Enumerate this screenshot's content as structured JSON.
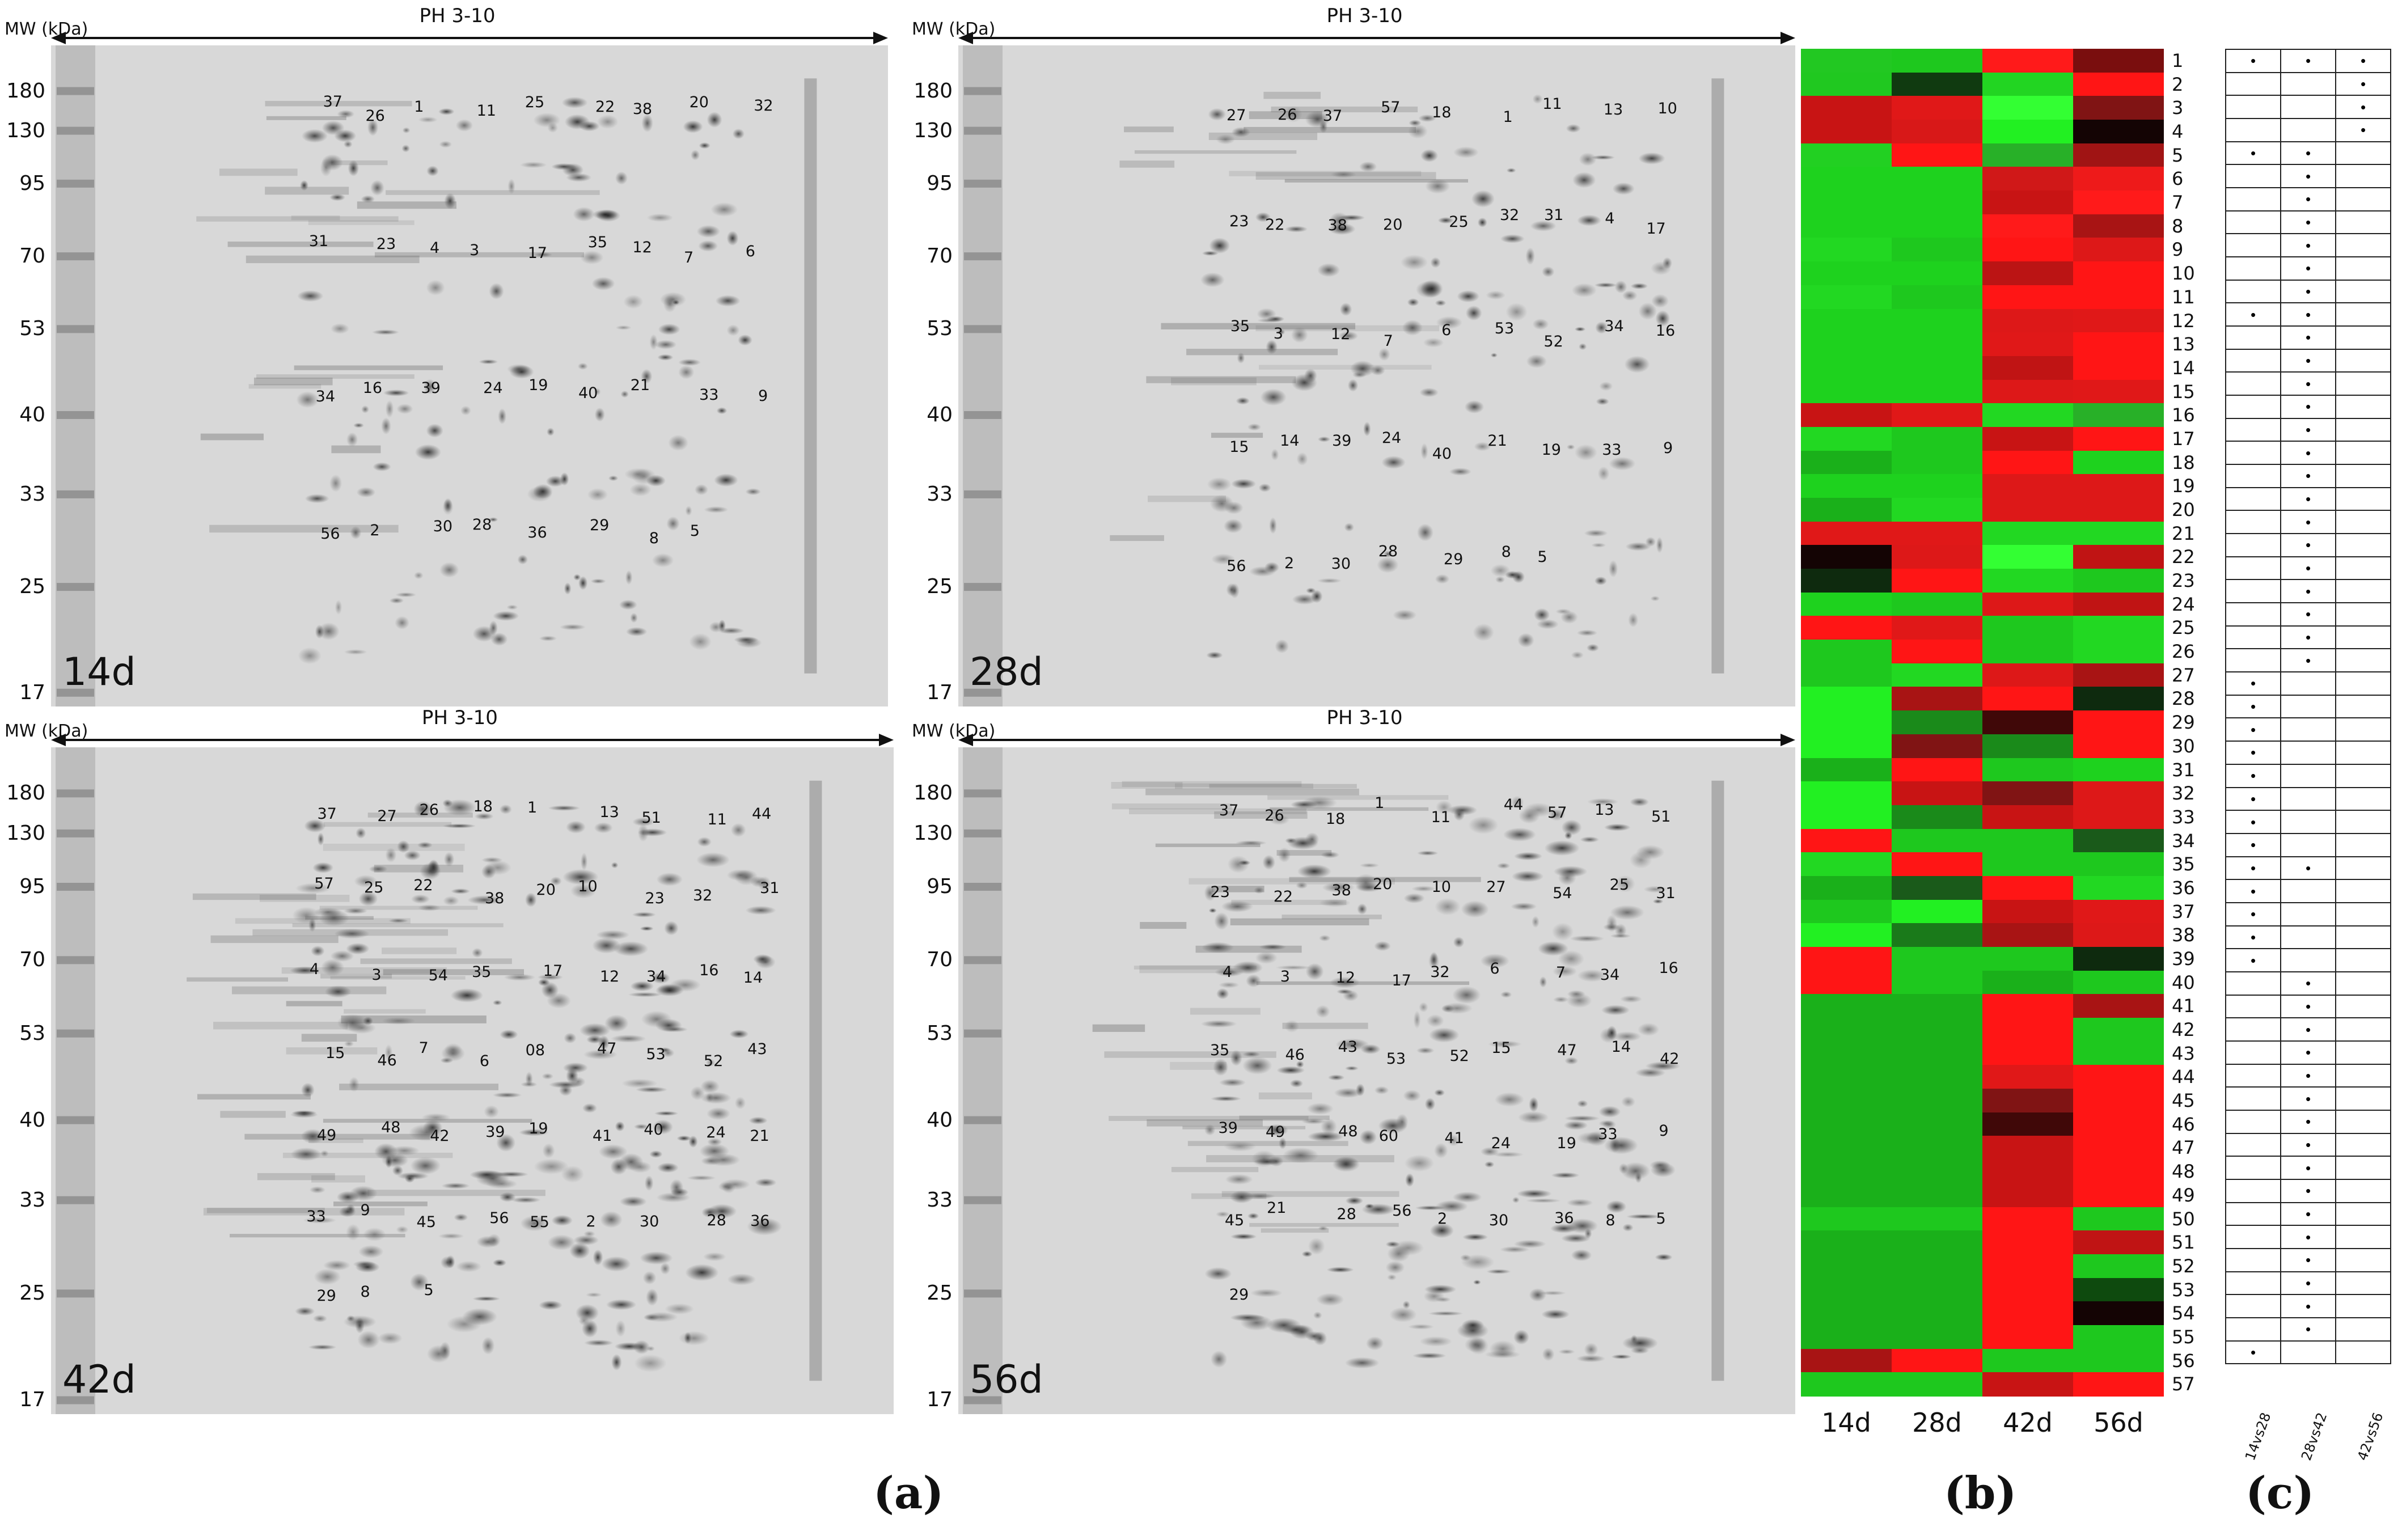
{
  "gel_common": {
    "mw_header": "MW (kDa)",
    "ph_label": "PH 3-10",
    "mw_ticks": [
      "180",
      "130",
      "95",
      "70",
      "53",
      "40",
      "33",
      "25",
      "17"
    ]
  },
  "gels": [
    {
      "id": "g14",
      "day_label": "14d",
      "spots": [
        "37",
        "26",
        "1",
        "11",
        "25",
        "22",
        "38",
        "20",
        "32",
        "31",
        "23",
        "4",
        "3",
        "17",
        "35",
        "12",
        "7",
        "6",
        "34",
        "16",
        "39",
        "24",
        "19",
        "40",
        "21",
        "33",
        "9",
        "56",
        "2",
        "30",
        "28",
        "36",
        "29",
        "8",
        "5"
      ]
    },
    {
      "id": "g28",
      "day_label": "28d",
      "spots": [
        "27",
        "26",
        "37",
        "57",
        "18",
        "1",
        "11",
        "13",
        "10",
        "23",
        "22",
        "38",
        "20",
        "25",
        "32",
        "31",
        "4",
        "17",
        "35",
        "3",
        "12",
        "7",
        "6",
        "53",
        "52",
        "34",
        "16",
        "15",
        "14",
        "39",
        "24",
        "40",
        "21",
        "19",
        "33",
        "9",
        "56",
        "2",
        "30",
        "28",
        "29",
        "8",
        "5"
      ]
    },
    {
      "id": "g42",
      "day_label": "42d",
      "spots": [
        "37",
        "27",
        "26",
        "18",
        "1",
        "13",
        "51",
        "11",
        "44",
        "57",
        "25",
        "22",
        "38",
        "20",
        "10",
        "23",
        "32",
        "31",
        "4",
        "3",
        "54",
        "35",
        "17",
        "12",
        "34",
        "16",
        "14",
        "15",
        "46",
        "7",
        "6",
        "08",
        "47",
        "53",
        "52",
        "43",
        "49",
        "48",
        "42",
        "39",
        "19",
        "41",
        "40",
        "24",
        "21",
        "33",
        "9",
        "45",
        "56",
        "55",
        "2",
        "30",
        "28",
        "36",
        "29",
        "8",
        "5"
      ]
    },
    {
      "id": "g56",
      "day_label": "56d",
      "spots": [
        "37",
        "26",
        "18",
        "1",
        "11",
        "44",
        "57",
        "13",
        "51",
        "23",
        "22",
        "38",
        "20",
        "10",
        "27",
        "54",
        "25",
        "31",
        "4",
        "3",
        "12",
        "17",
        "32",
        "6",
        "7",
        "34",
        "16",
        "35",
        "46",
        "43",
        "53",
        "52",
        "15",
        "47",
        "14",
        "42",
        "39",
        "49",
        "48",
        "60",
        "41",
        "24",
        "19",
        "33",
        "9",
        "45",
        "21",
        "28",
        "56",
        "2",
        "30",
        "36",
        "8",
        "5",
        "29"
      ]
    }
  ],
  "heatmap": {
    "columns": [
      "14d",
      "28d",
      "42d",
      "56d"
    ],
    "row_labels": [
      "1",
      "2",
      "3",
      "4",
      "5",
      "6",
      "7",
      "8",
      "9",
      "10",
      "11",
      "12",
      "13",
      "14",
      "15",
      "16",
      "17",
      "18",
      "19",
      "20",
      "21",
      "22",
      "23",
      "24",
      "25",
      "26",
      "27",
      "28",
      "29",
      "30",
      "31",
      "32",
      "33",
      "34",
      "35",
      "36",
      "37",
      "38",
      "39",
      "40",
      "41",
      "42",
      "43",
      "44",
      "45",
      "46",
      "47",
      "48",
      "49",
      "50",
      "51",
      "52",
      "53",
      "54",
      "55",
      "56",
      "57"
    ],
    "cells": [
      [
        "#22c822",
        "#1ec81e",
        "#ff1a1a",
        "#7a0e0e"
      ],
      [
        "#20c820",
        "#103a10",
        "#22d522",
        "#ff1515"
      ],
      [
        "#c81414",
        "#e01818",
        "#33ff33",
        "#801414"
      ],
      [
        "#c81414",
        "#d81818",
        "#22f022",
        "#140404"
      ],
      [
        "#22d022",
        "#ff1515",
        "#28b028",
        "#a01414"
      ],
      [
        "#1ed21e",
        "#1ed21e",
        "#d01818",
        "#ee1a1a"
      ],
      [
        "#1ed21e",
        "#1ed21e",
        "#c81414",
        "#ff1a1a"
      ],
      [
        "#1ed21e",
        "#1ed21e",
        "#ff1a1a",
        "#a81414"
      ],
      [
        "#22d822",
        "#1ec81e",
        "#ff1515",
        "#dd1818"
      ],
      [
        "#1ed21e",
        "#1ed21e",
        "#bb1414",
        "#ff1515"
      ],
      [
        "#22d822",
        "#1ec81e",
        "#ff1515",
        "#ff1515"
      ],
      [
        "#1ed21e",
        "#1ed21e",
        "#dd1818",
        "#e01818"
      ],
      [
        "#1ed21e",
        "#1ed21e",
        "#e01818",
        "#ff1515"
      ],
      [
        "#1ed21e",
        "#1ed21e",
        "#c01414",
        "#ff1515"
      ],
      [
        "#1ed21e",
        "#1ed21e",
        "#dd1818",
        "#e01818"
      ],
      [
        "#c81414",
        "#e01818",
        "#22d822",
        "#28b028"
      ],
      [
        "#22d822",
        "#1ec81e",
        "#c81414",
        "#ff1515"
      ],
      [
        "#1ab01a",
        "#1ec81e",
        "#ff1515",
        "#1ed21e"
      ],
      [
        "#1ed21e",
        "#1ed21e",
        "#dd1818",
        "#dd1818"
      ],
      [
        "#1ab01a",
        "#22d822",
        "#dd1818",
        "#dd1818"
      ],
      [
        "#e01818",
        "#e01818",
        "#22d822",
        "#22d822"
      ],
      [
        "#140404",
        "#dd1818",
        "#33ff33",
        "#c01414"
      ],
      [
        "#0e2a0e",
        "#ff1515",
        "#22d822",
        "#1ec81e"
      ],
      [
        "#1ed21e",
        "#1ec81e",
        "#dd1818",
        "#c01414"
      ],
      [
        "#ff1515",
        "#e01818",
        "#1ec81e",
        "#22d822"
      ],
      [
        "#1ec81e",
        "#ff1515",
        "#1ec81e",
        "#22d822"
      ],
      [
        "#1ec81e",
        "#22d822",
        "#dd1818",
        "#a81414"
      ],
      [
        "#22f022",
        "#a81414",
        "#ff1515",
        "#0e2a0e"
      ],
      [
        "#22f022",
        "#1a8a1a",
        "#400808",
        "#ff1515"
      ],
      [
        "#22f022",
        "#801414",
        "#1a8a1a",
        "#ff1515"
      ],
      [
        "#1ab01a",
        "#ff1515",
        "#1ec81e",
        "#1ed21e"
      ],
      [
        "#22f022",
        "#c81414",
        "#801414",
        "#dd1818"
      ],
      [
        "#22f022",
        "#1a8a1a",
        "#c81414",
        "#dd1818"
      ],
      [
        "#ff1515",
        "#1ec81e",
        "#1ec81e",
        "#1a5a1a"
      ],
      [
        "#22d822",
        "#ff1515",
        "#1ec81e",
        "#1ec81e"
      ],
      [
        "#1ab01a",
        "#1a5a1a",
        "#ff1515",
        "#22d822"
      ],
      [
        "#1ec81e",
        "#22f022",
        "#c81414",
        "#e01818"
      ],
      [
        "#22f022",
        "#1a7a1a",
        "#a81414",
        "#dd1818"
      ],
      [
        "#ff1515",
        "#1ec81e",
        "#1ec81e",
        "#0e2a0e"
      ],
      [
        "#ff1515",
        "#1ec81e",
        "#1ab01a",
        "#1ec81e"
      ],
      [
        "#1ab01a",
        "#1ab01a",
        "#ff1515",
        "#a81414"
      ],
      [
        "#1ab01a",
        "#1ab01a",
        "#ff1515",
        "#1ec81e"
      ],
      [
        "#1ab01a",
        "#1ab01a",
        "#ff1515",
        "#1ec81e"
      ],
      [
        "#1ab01a",
        "#1ab01a",
        "#e01818",
        "#ff1515"
      ],
      [
        "#1ab01a",
        "#1ab01a",
        "#801414",
        "#ff1515"
      ],
      [
        "#1ab01a",
        "#1ab01a",
        "#400808",
        "#ff1515"
      ],
      [
        "#1ab01a",
        "#1ab01a",
        "#c81414",
        "#ff1515"
      ],
      [
        "#1ab01a",
        "#1ab01a",
        "#c81414",
        "#ff1515"
      ],
      [
        "#1ab01a",
        "#1ab01a",
        "#c81414",
        "#ff1515"
      ],
      [
        "#1ec81e",
        "#1ec81e",
        "#ff1515",
        "#1ec81e"
      ],
      [
        "#1ab01a",
        "#1ab01a",
        "#ff1515",
        "#c01414"
      ],
      [
        "#1ab01a",
        "#1ab01a",
        "#ff1515",
        "#1ec81e"
      ],
      [
        "#1ab01a",
        "#1ab01a",
        "#ff1515",
        "#0e4a0e"
      ],
      [
        "#1ab01a",
        "#1ab01a",
        "#ff1515",
        "#140404"
      ],
      [
        "#1ab01a",
        "#1ab01a",
        "#ff1515",
        "#1ec81e"
      ],
      [
        "#a81414",
        "#ff1515",
        "#1ec81e",
        "#1ec81e"
      ],
      [
        "#1ec81e",
        "#1ec81e",
        "#c81414",
        "#ff1515"
      ]
    ]
  },
  "table": {
    "columns": [
      "14vs28",
      "28vs42",
      "42vs56"
    ],
    "marks": [
      [
        1,
        1,
        1
      ],
      [
        0,
        0,
        1
      ],
      [
        0,
        0,
        1
      ],
      [
        0,
        0,
        1
      ],
      [
        1,
        1,
        0
      ],
      [
        0,
        1,
        0
      ],
      [
        0,
        1,
        0
      ],
      [
        0,
        1,
        0
      ],
      [
        0,
        1,
        0
      ],
      [
        0,
        1,
        0
      ],
      [
        0,
        1,
        0
      ],
      [
        1,
        1,
        0
      ],
      [
        0,
        1,
        0
      ],
      [
        0,
        1,
        0
      ],
      [
        0,
        1,
        0
      ],
      [
        0,
        1,
        0
      ],
      [
        0,
        1,
        0
      ],
      [
        0,
        1,
        0
      ],
      [
        0,
        1,
        0
      ],
      [
        0,
        1,
        0
      ],
      [
        0,
        1,
        0
      ],
      [
        0,
        1,
        0
      ],
      [
        0,
        1,
        0
      ],
      [
        0,
        1,
        0
      ],
      [
        0,
        1,
        0
      ],
      [
        0,
        1,
        0
      ],
      [
        0,
        1,
        0
      ],
      [
        1,
        0,
        0
      ],
      [
        1,
        0,
        0
      ],
      [
        1,
        0,
        0
      ],
      [
        1,
        0,
        0
      ],
      [
        1,
        0,
        0
      ],
      [
        1,
        0,
        0
      ],
      [
        1,
        0,
        0
      ],
      [
        1,
        0,
        0
      ],
      [
        1,
        1,
        0
      ],
      [
        1,
        0,
        0
      ],
      [
        1,
        0,
        0
      ],
      [
        1,
        0,
        0
      ],
      [
        1,
        0,
        0
      ],
      [
        0,
        1,
        0
      ],
      [
        0,
        1,
        0
      ],
      [
        0,
        1,
        0
      ],
      [
        0,
        1,
        0
      ],
      [
        0,
        1,
        0
      ],
      [
        0,
        1,
        0
      ],
      [
        0,
        1,
        0
      ],
      [
        0,
        1,
        0
      ],
      [
        0,
        1,
        0
      ],
      [
        0,
        1,
        0
      ],
      [
        0,
        1,
        0
      ],
      [
        0,
        1,
        0
      ],
      [
        0,
        1,
        0
      ],
      [
        0,
        1,
        0
      ],
      [
        0,
        1,
        0
      ],
      [
        0,
        1,
        0
      ],
      [
        1,
        0,
        0
      ]
    ],
    "mark_glyph": "•"
  },
  "panel_letters": {
    "a": "(a)",
    "b": "(b)",
    "c": "(c)"
  }
}
